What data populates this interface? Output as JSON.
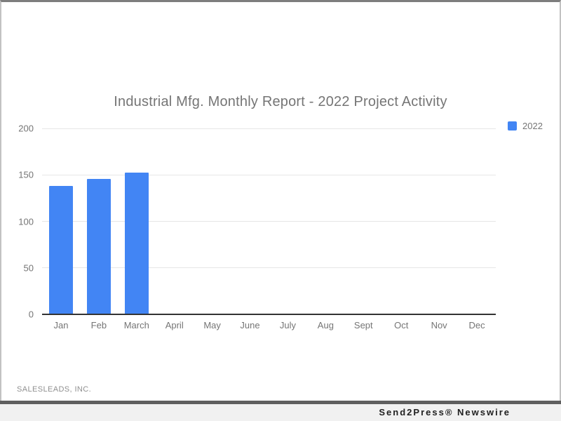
{
  "page": {
    "source_label": "SALESLEADS, INC.",
    "footer_brand": "Send2Press® Newswire"
  },
  "chart_data": {
    "type": "bar",
    "title": "Industrial Mfg. Monthly Report - 2022 Project Activity",
    "categories": [
      "Jan",
      "Feb",
      "March",
      "April",
      "May",
      "June",
      "July",
      "Aug",
      "Sept",
      "Oct",
      "Nov",
      "Dec"
    ],
    "series": [
      {
        "name": "2022",
        "color": "#4285f4",
        "values": [
          137,
          145,
          152,
          null,
          null,
          null,
          null,
          null,
          null,
          null,
          null,
          null
        ]
      }
    ],
    "xlabel": "",
    "ylabel": "",
    "ylim": [
      0,
      200
    ],
    "yticks": [
      0,
      50,
      100,
      150,
      200
    ],
    "grid": true,
    "legend_position": "right-top"
  },
  "colors": {
    "bar": "#4285f4",
    "title": "#757575",
    "axis_label": "#757575",
    "gridline": "#e6e6e6",
    "baseline": "#333333",
    "card_bg": "#ffffff",
    "frame": "#7d7d7d",
    "frame_side": "#c2c2c2",
    "footer_bar": "#5f5f5f",
    "footer_bg": "#f1f1f1",
    "footer_text": "#1f1f1f",
    "source_text": "#8f8f8f"
  }
}
